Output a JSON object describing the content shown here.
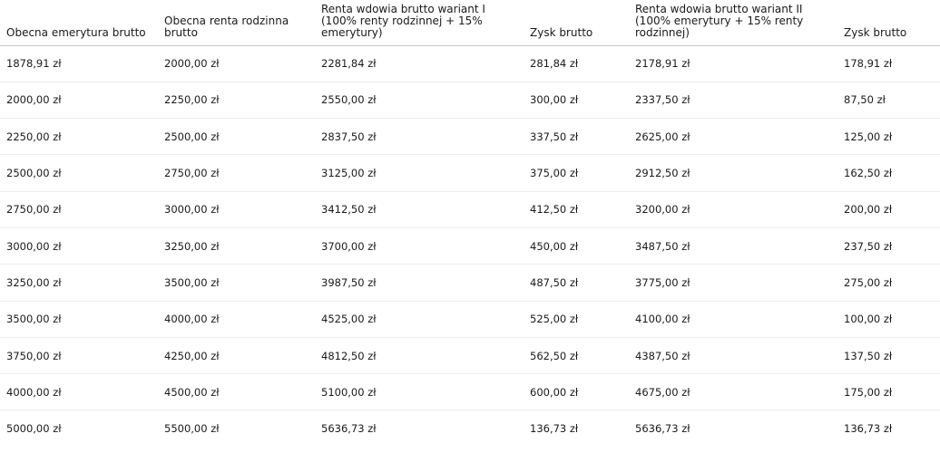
{
  "table": {
    "headers": [
      "Obecna emerytura brutto",
      "Obecna renta rodzinna brutto",
      "Renta wdowia brutto wariant I (100% renty rodzinnej + 15% emerytury)",
      "Zysk brutto",
      "Renta wdowia brutto wariant II (100% emerytury + 15% renty rodzinnej)",
      "Zysk brutto"
    ],
    "rows": [
      [
        "1878,91 zł",
        "2000,00 zł",
        "2281,84 zł",
        "281,84 zł",
        "2178,91 zł",
        "178,91 zł"
      ],
      [
        "2000,00 zł",
        "2250,00 zł",
        "2550,00 zł",
        "300,00 zł",
        "2337,50 zł",
        "87,50 zł"
      ],
      [
        "2250,00 zł",
        "2500,00 zł",
        "2837,50 zł",
        "337,50 zł",
        "2625,00 zł",
        "125,00 zł"
      ],
      [
        "2500,00 zł",
        "2750,00 zł",
        "3125,00 zł",
        "375,00 zł",
        "2912,50 zł",
        "162,50 zł"
      ],
      [
        "2750,00 zł",
        "3000,00 zł",
        "3412,50 zł",
        "412,50 zł",
        "3200,00 zł",
        "200,00 zł"
      ],
      [
        "3000,00 zł",
        "3250,00 zł",
        "3700,00 zł",
        "450,00 zł",
        "3487,50 zł",
        "237,50 zł"
      ],
      [
        "3250,00 zł",
        "3500,00 zł",
        "3987,50 zł",
        "487,50 zł",
        "3775,00 zł",
        "275,00 zł"
      ],
      [
        "3500,00 zł",
        "4000,00 zł",
        "4525,00 zł",
        "525,00 zł",
        "4100,00 zł",
        "100,00 zł"
      ],
      [
        "3750,00 zł",
        "4250,00 zł",
        "4812,50 zł",
        "562,50 zł",
        "4387,50 zł",
        "137,50 zł"
      ],
      [
        "4000,00 zł",
        "4500,00 zł",
        "5100,00 zł",
        "600,00 zł",
        "4675,00 zł",
        "175,00 zł"
      ],
      [
        "5000,00 zł",
        "5500,00 zł",
        "5636,73 zł",
        "136,73 zł",
        "5636,73 zł",
        "136,73 zł"
      ]
    ]
  }
}
